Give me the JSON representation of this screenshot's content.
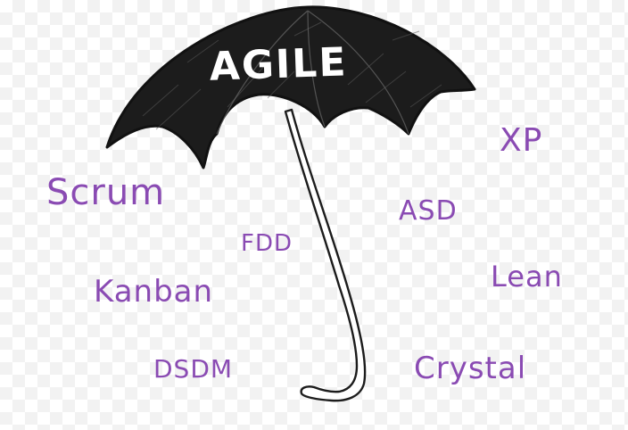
{
  "umbrella": {
    "label": "AGILE",
    "canopy_color": "#1c1c1c",
    "label_color": "#ffffff"
  },
  "methods": {
    "text_color": "#8a4bb3",
    "xp": "XP",
    "scrum": "Scrum",
    "asd": "ASD",
    "fdd": "FDD",
    "lean": "Lean",
    "kanban": "Kanban",
    "dsdm": "DSDM",
    "crystal": "Crystal"
  }
}
